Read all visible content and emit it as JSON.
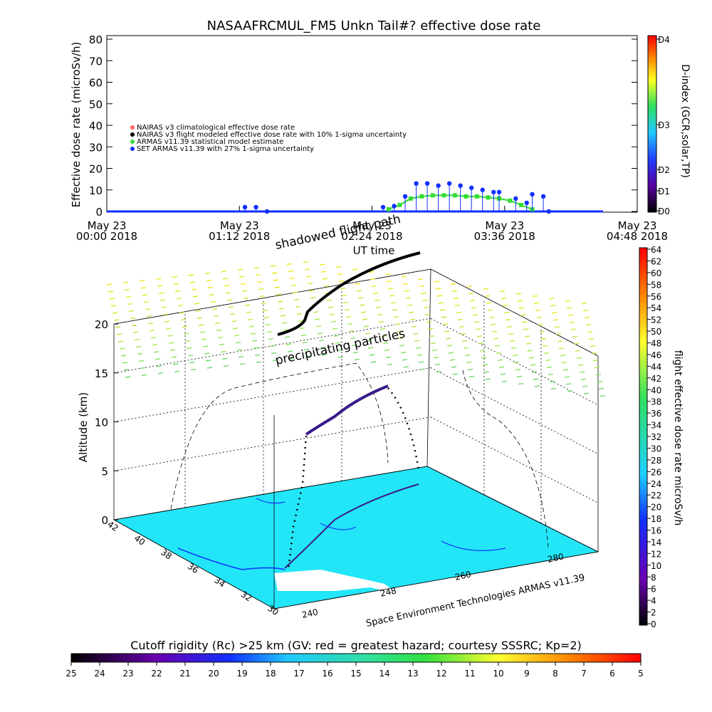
{
  "chart_data": [
    {
      "type": "scatter",
      "title": "NASAAFRCMUL_FM5 Unkn Tail#? effective dose rate",
      "xlabel": "UT time",
      "ylabel": "Effective dose rate (microSv/h)",
      "ylim": [
        0,
        80
      ],
      "yticks": [
        "0",
        "10",
        "20",
        "30",
        "40",
        "50",
        "60",
        "70",
        "80"
      ],
      "xticks": [
        {
          "date": "May 23",
          "time": "00:00 2018",
          "hours": 0.0
        },
        {
          "date": "May 23",
          "time": "01:12 2018",
          "hours": 1.2
        },
        {
          "date": "May 23",
          "time": "02:24 2018",
          "hours": 2.4
        },
        {
          "date": "May 23",
          "time": "03:36 2018",
          "hours": 3.6
        },
        {
          "date": "May 23",
          "time": "04:48 2018",
          "hours": 4.8
        }
      ],
      "xlim_hours": [
        0,
        4.8
      ],
      "legend_position": "left",
      "legend": [
        {
          "label": "NAIRAS v3 climatological effective dose rate",
          "color": "#ff6060",
          "marker": "diamond"
        },
        {
          "label": "NAIRAS v3 flight modeled effective dose rate with 10% 1-sigma uncertainty",
          "color": "#000000",
          "marker": "triangle"
        },
        {
          "label": "ARMAS v11.39 statistical model estimate",
          "color": "#33dd33",
          "marker": "square"
        },
        {
          "label": "SET ARMAS v11.39 with 27% 1-sigma uncertainty",
          "color": "#1030ff",
          "marker": "circle"
        }
      ],
      "series": [
        {
          "name": "SET ARMAS v11.39 with 27% 1-sigma uncertainty",
          "x": [
            1.25,
            1.35,
            1.45,
            2.5,
            2.6,
            2.7,
            2.8,
            2.9,
            3.0,
            3.1,
            3.2,
            3.3,
            3.4,
            3.5,
            3.55,
            3.7,
            3.8,
            3.85,
            3.95,
            4.0
          ],
          "y": [
            2,
            2,
            0,
            2,
            2.5,
            7,
            13,
            13,
            12,
            13,
            12,
            11,
            10,
            9,
            9,
            6,
            4,
            8,
            7,
            0
          ]
        },
        {
          "name": "ARMAS v11.39 statistical model estimate",
          "x": [
            2.55,
            2.65,
            2.75,
            2.85,
            2.95,
            3.05,
            3.15,
            3.25,
            3.35,
            3.45,
            3.55,
            3.65,
            3.75,
            3.85
          ],
          "y": [
            1,
            3,
            6,
            7,
            7.5,
            7.5,
            7.5,
            7,
            7,
            6.5,
            6,
            5,
            3,
            1
          ]
        }
      ],
      "right_axis": {
        "label": "D-index (GCR,solar,TP)",
        "ticks": [
          "D0",
          "D1",
          "D2",
          "D3",
          "D4"
        ],
        "colors": [
          "#000000",
          "#6a00a0",
          "#2040ff",
          "#20c0ff",
          "#30e060",
          "#ffff20",
          "#ff8000",
          "#ff0000"
        ]
      }
    },
    {
      "type": "3d-surface",
      "zlabel": "Altitude (km)",
      "zticks": [
        "0",
        "5",
        "10",
        "15",
        "20"
      ],
      "latitude_ticks": [
        "42",
        "40",
        "38",
        "36",
        "34",
        "32",
        "30"
      ],
      "longitude_ticks": [
        "240",
        "248",
        "260",
        "280"
      ],
      "credit": "Space Environment Technologies ARMAS v11.39",
      "annotations": [
        "shadowed flight path",
        "precipitating particles"
      ],
      "colorbar_right": {
        "label": "flight effective dose rate microSv/h",
        "min": 0,
        "max": 64,
        "step": 2,
        "ticks": [
          "0",
          "2",
          "4",
          "6",
          "8",
          "10",
          "12",
          "14",
          "16",
          "18",
          "20",
          "22",
          "24",
          "26",
          "28",
          "30",
          "32",
          "34",
          "36",
          "38",
          "40",
          "42",
          "44",
          "46",
          "48",
          "50",
          "52",
          "54",
          "56",
          "58",
          "60",
          "62",
          "64"
        ]
      },
      "colorbar_bottom": {
        "label": "Cutoff rigidity (Rc) >25 km (GV: red = greatest hazard; courtesy SSSRC; Kp=2)",
        "ticks": [
          "25",
          "24",
          "23",
          "22",
          "21",
          "20",
          "19",
          "18",
          "17",
          "16",
          "15",
          "14",
          "13",
          "12",
          "11",
          "10",
          "9",
          "8",
          "7",
          "6",
          "5"
        ]
      },
      "colors": {
        "ground": "#22e6f8",
        "flight_low": "#3a1a8a",
        "flight_high": "#000000"
      }
    }
  ]
}
